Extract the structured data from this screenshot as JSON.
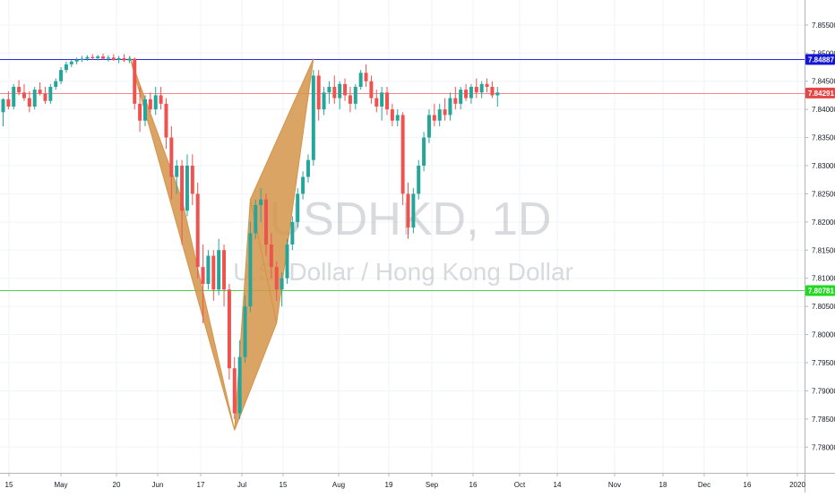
{
  "chart_data": {
    "type": "candlestick",
    "symbol": "USDHKD",
    "interval": "1D",
    "watermark_title": "USDHKD, 1D",
    "watermark_subtitle": "U.S. Dollar / Hong Kong Dollar",
    "ylim": [
      7.7775,
      7.858
    ],
    "y_ticks": [
      "7.85500",
      "7.85000",
      "7.84500",
      "7.84000",
      "7.83500",
      "7.83000",
      "7.82500",
      "7.82000",
      "7.81500",
      "7.81000",
      "7.80500",
      "7.80000",
      "7.79500",
      "7.79000",
      "7.78500",
      "7.78000"
    ],
    "x_ticks": [
      "15",
      "May",
      "20",
      "Jun",
      "17",
      "Jul",
      "15",
      "Aug",
      "19",
      "Sep",
      "16",
      "Oct",
      "14",
      "Nov",
      "18",
      "Dec",
      "16",
      "2020"
    ],
    "horizontal_lines": [
      {
        "price": 7.84887,
        "label": "7.84887",
        "color": "#2a2ae0",
        "label_bg": "#1515d8"
      },
      {
        "price": 7.84291,
        "label": "7.84291",
        "color": "#f08a8a",
        "label_bg": "#e64646"
      },
      {
        "price": 7.80781,
        "label": "7.80781",
        "color": "#4fd04f",
        "label_bg": "#22d822"
      }
    ],
    "pattern": {
      "name": "bat harmonic pattern",
      "color": "#d4944a",
      "points_day_price": [
        [
          24,
          7.8495
        ],
        [
          34,
          7.824
        ],
        [
          44,
          7.783
        ],
        [
          47,
          7.824
        ],
        [
          52,
          7.802
        ],
        [
          59,
          7.849
        ]
      ]
    },
    "bull_color": "#26a69a",
    "bear_color": "#ef5350",
    "candles": [
      [
        7.8395,
        7.842,
        7.837,
        7.8418
      ],
      [
        7.8418,
        7.8432,
        7.84,
        7.8405
      ],
      [
        7.8405,
        7.8445,
        7.84,
        7.844
      ],
      [
        7.844,
        7.8452,
        7.8425,
        7.843
      ],
      [
        7.843,
        7.8445,
        7.8415,
        7.842
      ],
      [
        7.842,
        7.8432,
        7.8395,
        7.8405
      ],
      [
        7.8405,
        7.844,
        7.84,
        7.8435
      ],
      [
        7.8435,
        7.8448,
        7.8425,
        7.8428
      ],
      [
        7.8428,
        7.844,
        7.841,
        7.8415
      ],
      [
        7.8415,
        7.8445,
        7.841,
        7.844
      ],
      [
        7.844,
        7.8455,
        7.8435,
        7.845
      ],
      [
        7.845,
        7.8475,
        7.8445,
        7.847
      ],
      [
        7.847,
        7.8485,
        7.8465,
        7.848
      ],
      [
        7.848,
        7.8488,
        7.8475,
        7.8485
      ],
      [
        7.8485,
        7.8492,
        7.848,
        7.8488
      ],
      [
        7.8488,
        7.8495,
        7.8484,
        7.849
      ],
      [
        7.849,
        7.8496,
        7.8486,
        7.8493
      ],
      [
        7.8493,
        7.8498,
        7.8488,
        7.8491
      ],
      [
        7.8491,
        7.8497,
        7.8487,
        7.8494
      ],
      [
        7.8494,
        7.8499,
        7.8488,
        7.849
      ],
      [
        7.849,
        7.8496,
        7.8485,
        7.8492
      ],
      [
        7.8492,
        7.8498,
        7.8486,
        7.8488
      ],
      [
        7.8488,
        7.8495,
        7.8482,
        7.8491
      ],
      [
        7.8491,
        7.8498,
        7.8484,
        7.8487
      ],
      [
        7.8487,
        7.8494,
        7.8482,
        7.849
      ],
      [
        7.849,
        7.8492,
        7.84,
        7.841
      ],
      [
        7.841,
        7.844,
        7.836,
        7.838
      ],
      [
        7.838,
        7.8425,
        7.837,
        7.8418
      ],
      [
        7.8418,
        7.843,
        7.8395,
        7.84
      ],
      [
        7.84,
        7.844,
        7.839,
        7.8425
      ],
      [
        7.8425,
        7.844,
        7.84,
        7.841
      ],
      [
        7.841,
        7.842,
        7.833,
        7.835
      ],
      [
        7.835,
        7.837,
        7.824,
        7.828
      ],
      [
        7.828,
        7.831,
        7.825,
        7.83
      ],
      [
        7.83,
        7.831,
        7.816,
        7.822
      ],
      [
        7.822,
        7.832,
        7.821,
        7.83
      ],
      [
        7.83,
        7.832,
        7.823,
        7.825
      ],
      [
        7.825,
        7.827,
        7.81,
        7.812
      ],
      [
        7.812,
        7.816,
        7.802,
        7.809
      ],
      [
        7.809,
        7.815,
        7.808,
        7.814
      ],
      [
        7.814,
        7.815,
        7.806,
        7.808
      ],
      [
        7.808,
        7.817,
        7.807,
        7.815
      ],
      [
        7.815,
        7.816,
        7.805,
        7.808
      ],
      [
        7.808,
        7.809,
        7.792,
        7.794
      ],
      [
        7.794,
        7.796,
        7.785,
        7.786
      ],
      [
        7.786,
        7.799,
        7.785,
        7.796
      ],
      [
        7.796,
        7.807,
        7.795,
        7.805
      ],
      [
        7.805,
        7.82,
        7.804,
        7.818
      ],
      [
        7.818,
        7.824,
        7.817,
        7.823
      ],
      [
        7.823,
        7.826,
        7.82,
        7.824
      ],
      [
        7.824,
        7.825,
        7.814,
        7.816
      ],
      [
        7.816,
        7.818,
        7.81,
        7.812
      ],
      [
        7.812,
        7.813,
        7.806,
        7.808
      ],
      [
        7.808,
        7.811,
        7.805,
        7.81
      ],
      [
        7.81,
        7.817,
        7.809,
        7.816
      ],
      [
        7.816,
        7.821,
        7.815,
        7.82
      ],
      [
        7.82,
        7.826,
        7.819,
        7.825
      ],
      [
        7.825,
        7.829,
        7.824,
        7.828
      ],
      [
        7.828,
        7.832,
        7.827,
        7.831
      ],
      [
        7.831,
        7.847,
        7.83,
        7.846
      ],
      [
        7.846,
        7.847,
        7.838,
        7.84
      ],
      [
        7.84,
        7.844,
        7.839,
        7.843
      ],
      [
        7.843,
        7.845,
        7.841,
        7.844
      ],
      [
        7.844,
        7.846,
        7.841,
        7.842
      ],
      [
        7.842,
        7.845,
        7.84,
        7.8445
      ],
      [
        7.8445,
        7.8455,
        7.8415,
        7.8425
      ],
      [
        7.8425,
        7.844,
        7.8395,
        7.841
      ],
      [
        7.841,
        7.8445,
        7.84,
        7.844
      ],
      [
        7.844,
        7.847,
        7.8435,
        7.8465
      ],
      [
        7.8465,
        7.848,
        7.844,
        7.845
      ],
      [
        7.845,
        7.846,
        7.841,
        7.842
      ],
      [
        7.842,
        7.8435,
        7.8395,
        7.8405
      ],
      [
        7.8405,
        7.844,
        7.838,
        7.843
      ],
      [
        7.843,
        7.844,
        7.839,
        7.84
      ],
      [
        7.84,
        7.841,
        7.837,
        7.838
      ],
      [
        7.838,
        7.84,
        7.837,
        7.839
      ],
      [
        7.839,
        7.8395,
        7.823,
        7.825
      ],
      [
        7.825,
        7.827,
        7.817,
        7.819
      ],
      [
        7.819,
        7.826,
        7.818,
        7.825
      ],
      [
        7.825,
        7.831,
        7.824,
        7.83
      ],
      [
        7.83,
        7.836,
        7.829,
        7.835
      ],
      [
        7.835,
        7.84,
        7.834,
        7.839
      ],
      [
        7.839,
        7.841,
        7.837,
        7.838
      ],
      [
        7.838,
        7.841,
        7.837,
        7.84
      ],
      [
        7.84,
        7.842,
        7.838,
        7.839
      ],
      [
        7.839,
        7.843,
        7.838,
        7.842
      ],
      [
        7.842,
        7.844,
        7.84,
        7.841
      ],
      [
        7.841,
        7.844,
        7.84,
        7.8435
      ],
      [
        7.8435,
        7.8445,
        7.8415,
        7.842
      ],
      [
        7.842,
        7.8445,
        7.841,
        7.844
      ],
      [
        7.844,
        7.8455,
        7.842,
        7.843
      ],
      [
        7.843,
        7.845,
        7.842,
        7.8445
      ],
      [
        7.8445,
        7.8455,
        7.843,
        7.844
      ],
      [
        7.844,
        7.845,
        7.842,
        7.8425
      ],
      [
        7.8425,
        7.844,
        7.8405,
        7.843
      ]
    ]
  }
}
